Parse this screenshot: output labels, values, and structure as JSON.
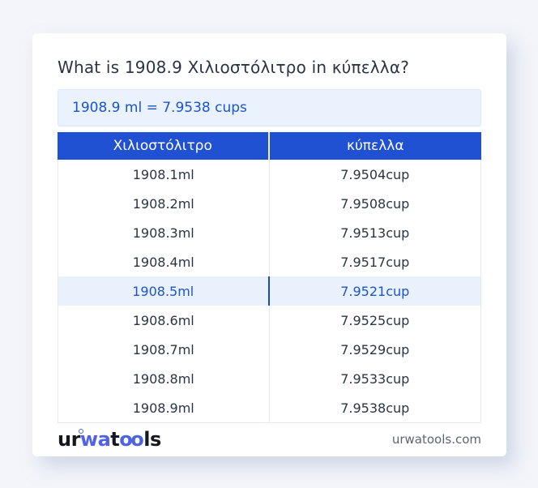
{
  "title": "What is 1908.9 Χιλιοστόλιτρο in κύπελλα?",
  "answer_box": {
    "text": "1908.9 ml = 7.9538 cups"
  },
  "table": {
    "header": {
      "col1": "Χιλιοστόλιτρο",
      "col2": "κύπελλα"
    },
    "rows": [
      {
        "ml": "1908.1ml",
        "cup": "7.9504cup",
        "highlighted": false
      },
      {
        "ml": "1908.2ml",
        "cup": "7.9508cup",
        "highlighted": false
      },
      {
        "ml": "1908.3ml",
        "cup": "7.9513cup",
        "highlighted": false
      },
      {
        "ml": "1908.4ml",
        "cup": "7.9517cup",
        "highlighted": false
      },
      {
        "ml": "1908.5ml",
        "cup": "7.9521cup",
        "highlighted": true
      },
      {
        "ml": "1908.6ml",
        "cup": "7.9525cup",
        "highlighted": false
      },
      {
        "ml": "1908.7ml",
        "cup": "7.9529cup",
        "highlighted": false
      },
      {
        "ml": "1908.8ml",
        "cup": "7.9533cup",
        "highlighted": false
      },
      {
        "ml": "1908.9ml",
        "cup": "7.9538cup",
        "highlighted": false
      }
    ],
    "highlighted_row_index": 4
  },
  "footer": {
    "logo": {
      "seg1": "ur",
      "seg2": "wa",
      "seg3": "t",
      "seg4": "oo",
      "seg5": "ls"
    },
    "domain": "urwatools.com"
  },
  "colors": {
    "page_background": "#f3f5fa",
    "header_background": "#2151d3",
    "answer_background": "#eaf2fd",
    "highlight_background": "#e9f1fc",
    "link_blue": "#1d53cf",
    "logo_blue": "#4f63e6",
    "logo_dark": "#17171f"
  }
}
